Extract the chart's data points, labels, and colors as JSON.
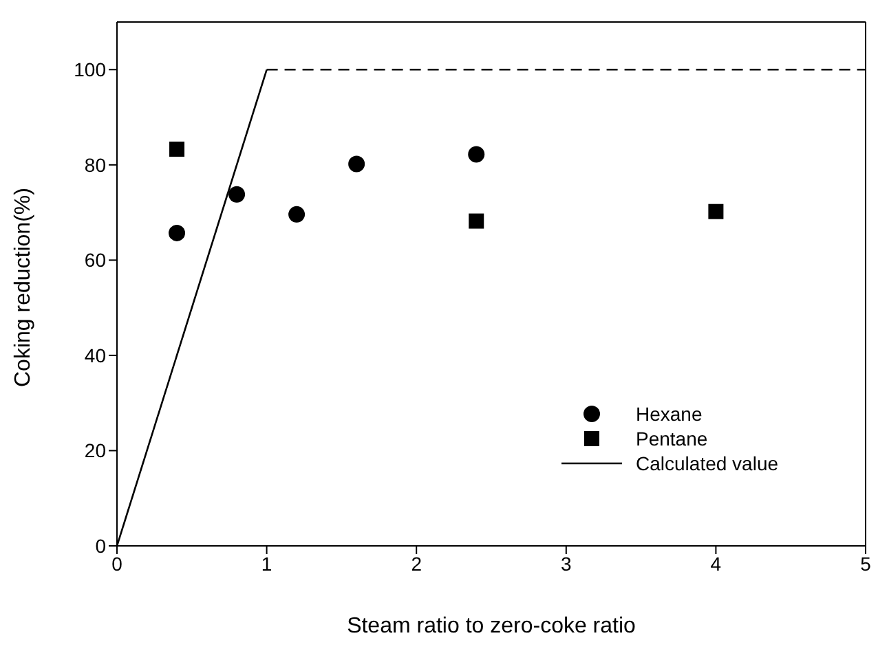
{
  "chart_data": {
    "type": "scatter",
    "xlabel": "Steam ratio to zero-coke ratio",
    "ylabel": "Coking reduction(%)",
    "xlim": [
      0,
      5
    ],
    "xticks": [
      0,
      1,
      2,
      3,
      4,
      5
    ],
    "ylim": [
      0,
      110
    ],
    "yticks": [
      0,
      20,
      40,
      60,
      80,
      100
    ],
    "grid": false,
    "legend": "bottom right",
    "series": [
      {
        "name": "Hexane",
        "marker": "circle",
        "color": "#000000",
        "x": [
          0.4,
          0.8,
          1.2,
          1.6,
          2.4
        ],
        "values": [
          65.7,
          73.8,
          69.6,
          80.2,
          82.2
        ]
      },
      {
        "name": "Pentane",
        "marker": "square",
        "color": "#000000",
        "x": [
          0.4,
          2.4,
          4
        ],
        "values": [
          83.3,
          68.2,
          70.2
        ]
      },
      {
        "name": "Calculated value",
        "type": "line",
        "marker": "none",
        "line_style": "solid",
        "color": "#000000",
        "x": [
          0,
          1
        ],
        "values": [
          0,
          100
        ]
      },
      {
        "type": "line",
        "marker": "none",
        "line_style": "dashed",
        "color": "#000000",
        "x": [
          1,
          5
        ],
        "values": [
          100,
          100
        ]
      }
    ]
  }
}
